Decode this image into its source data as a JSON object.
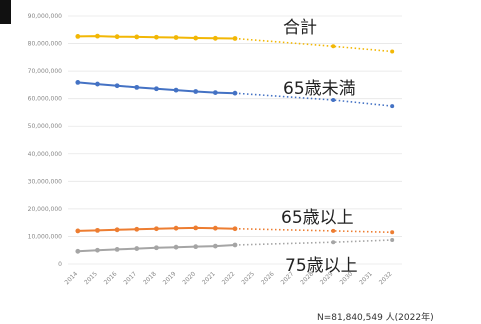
{
  "chart_data": {
    "type": "line",
    "title": "",
    "xlabel": "",
    "ylabel": "",
    "ylim": [
      0,
      90000000
    ],
    "y_ticks": [
      0,
      10000000,
      20000000,
      30000000,
      40000000,
      50000000,
      60000000,
      70000000,
      80000000,
      90000000
    ],
    "y_tick_labels": [
      "0",
      "10,000,000",
      "20,000,000",
      "30,000,000",
      "40,000,000",
      "50,000,000",
      "60,000,000",
      "70,000,000",
      "80,000,000",
      "90,000,000"
    ],
    "x": [
      "2014",
      "2015",
      "2016",
      "2017",
      "2018",
      "2019",
      "2020",
      "2021",
      "2022",
      "2025",
      "2026",
      "2027",
      "2028",
      "2029",
      "2030",
      "2031",
      "2032"
    ],
    "actual_until": "2022",
    "grid": true,
    "legend": "none",
    "series": [
      {
        "name": "合計",
        "color": "#F2B705",
        "values": [
          82600000,
          82700000,
          82500000,
          82400000,
          82300000,
          82200000,
          82000000,
          81900000,
          81840549,
          null,
          null,
          null,
          null,
          79000000,
          null,
          null,
          77100000
        ]
      },
      {
        "name": "65歳未満",
        "color": "#4472C4",
        "values": [
          65900000,
          65300000,
          64700000,
          64100000,
          63600000,
          63100000,
          62600000,
          62200000,
          62000000,
          null,
          null,
          null,
          null,
          59500000,
          null,
          null,
          57300000
        ]
      },
      {
        "name": "65歳以上",
        "color": "#ED7D31",
        "values": [
          12000000,
          12200000,
          12400000,
          12600000,
          12800000,
          13000000,
          13100000,
          13000000,
          12800000,
          null,
          null,
          null,
          null,
          12000000,
          null,
          null,
          11500000
        ]
      },
      {
        "name": "75歳以上",
        "color": "#A5A5A5",
        "values": [
          4600000,
          5000000,
          5300000,
          5600000,
          5900000,
          6100000,
          6300000,
          6500000,
          6900000,
          null,
          null,
          null,
          null,
          7900000,
          null,
          null,
          8700000
        ]
      }
    ],
    "annotations": [
      "合計",
      "65歳未満",
      "65歳以上",
      "75歳以上"
    ]
  },
  "note": "N=81,840,549 人(2022年)"
}
